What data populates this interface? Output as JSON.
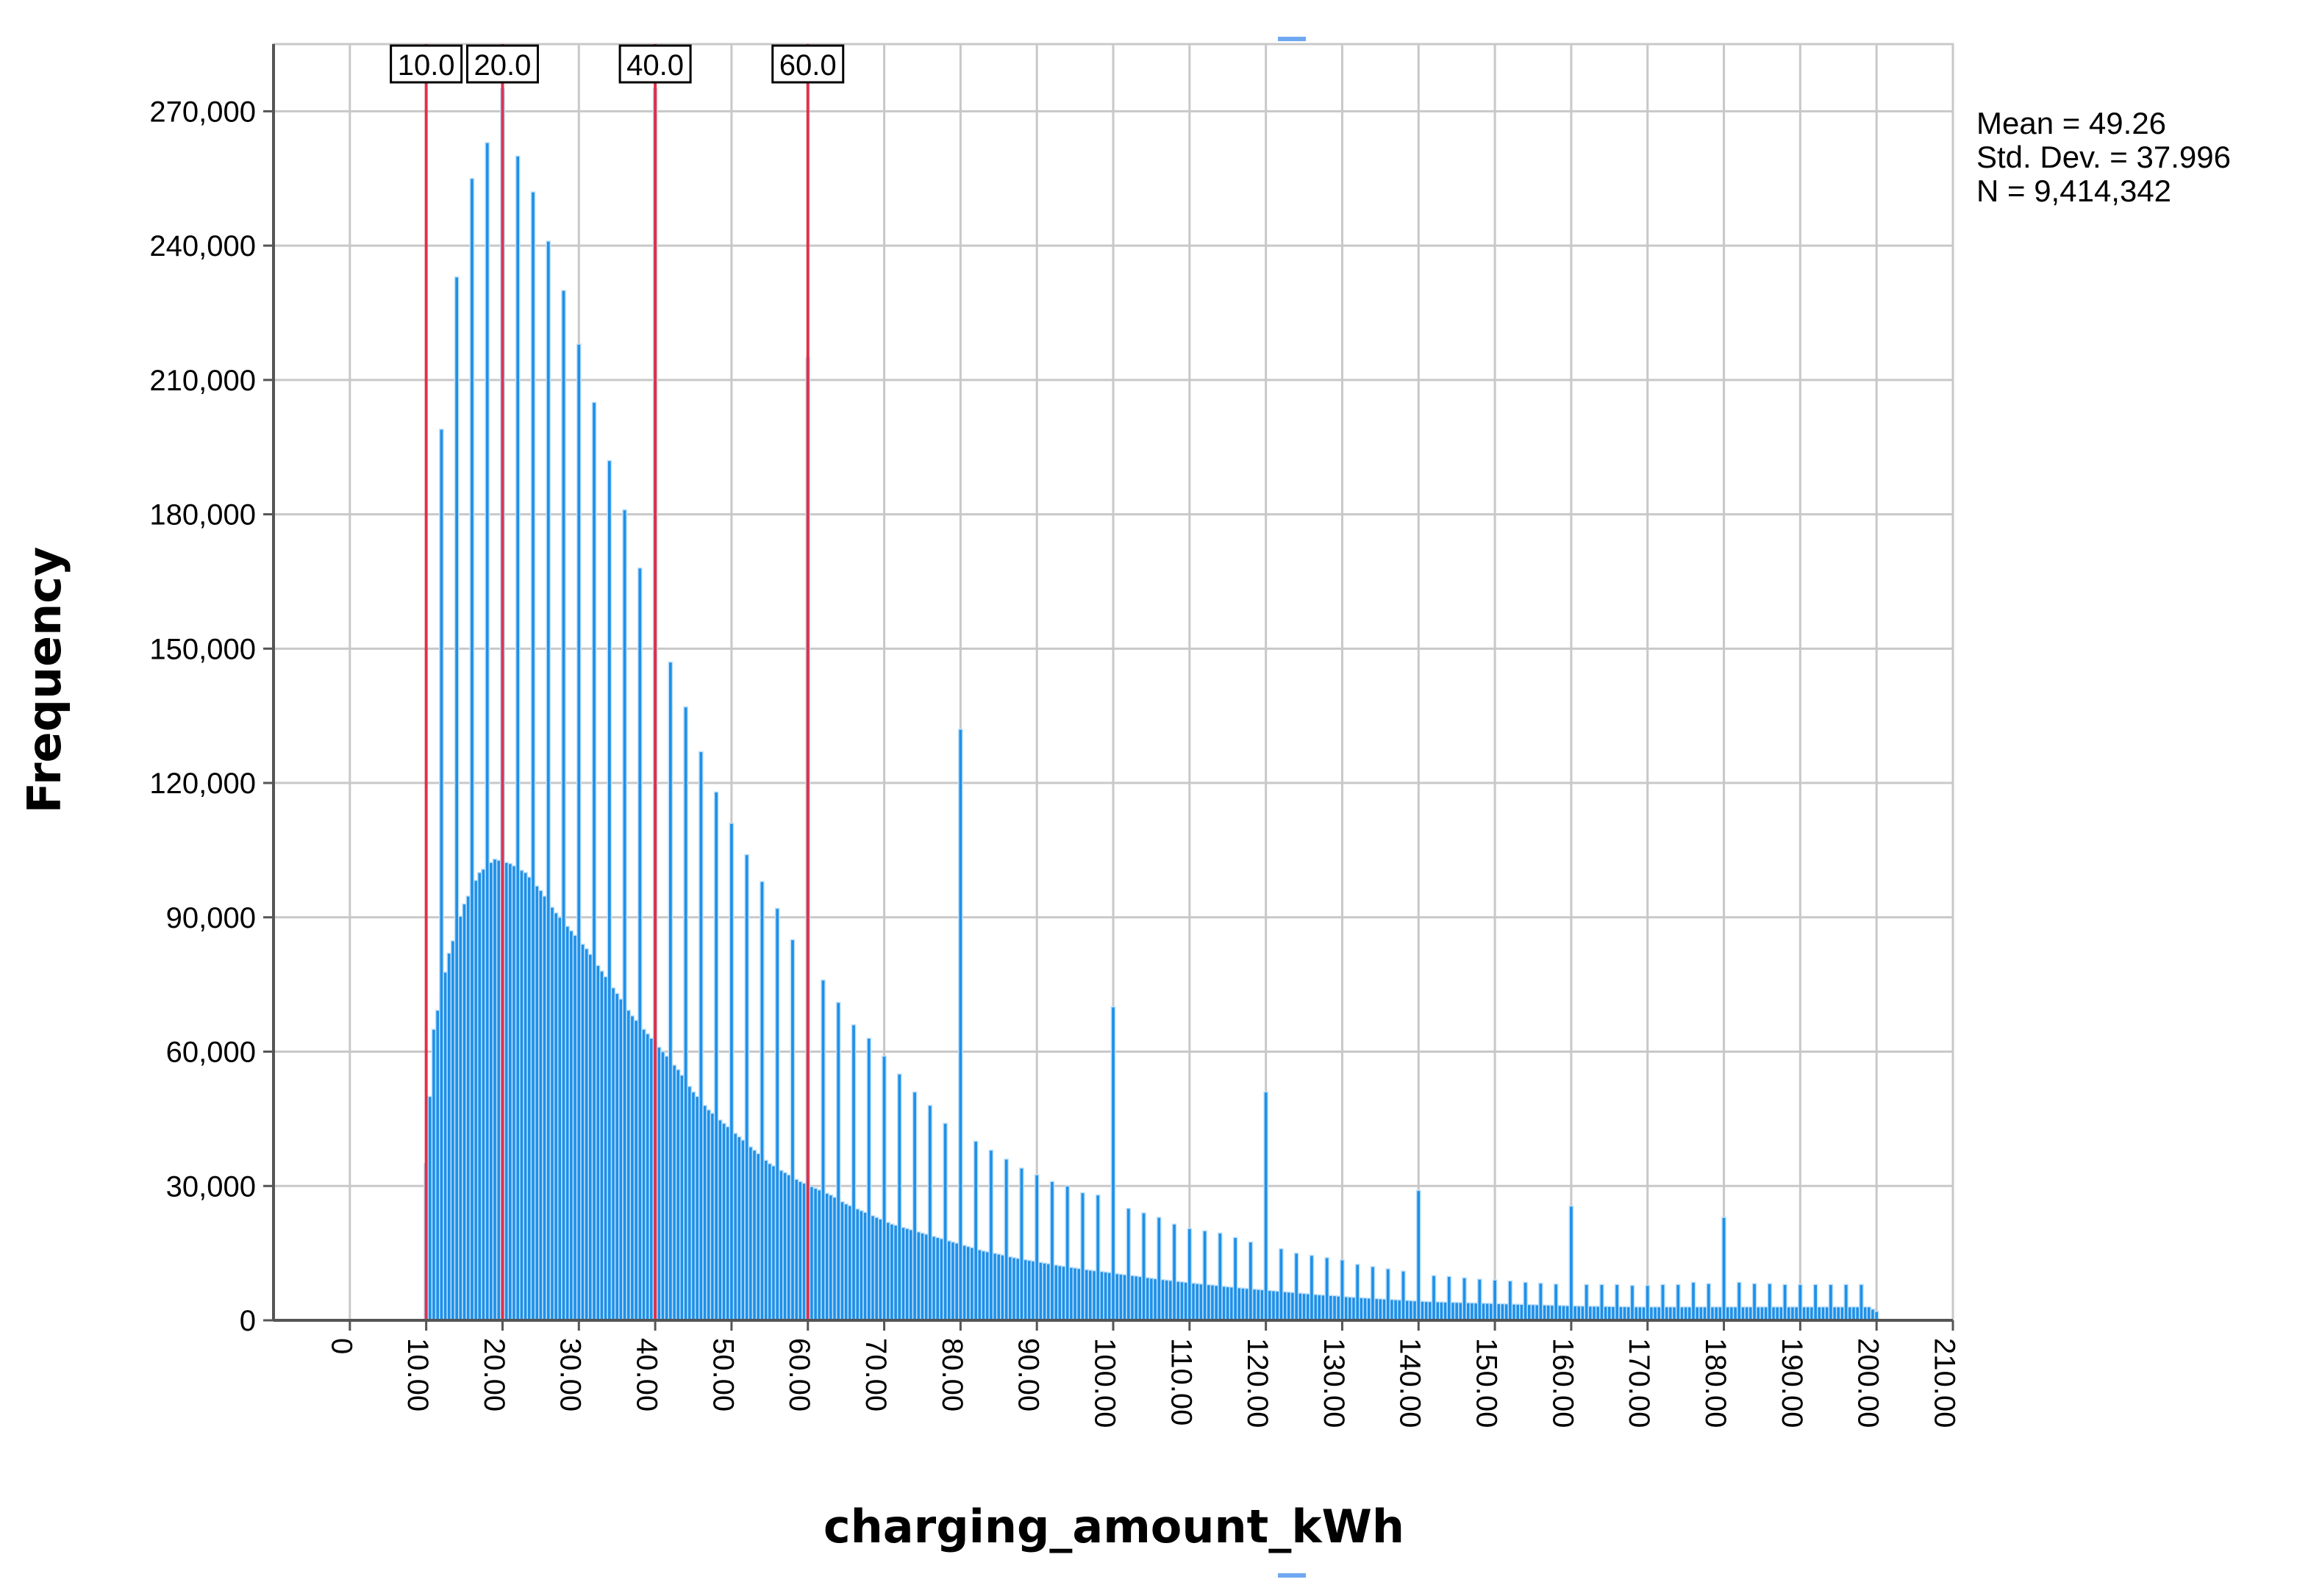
{
  "chart_data": {
    "type": "bar",
    "title": "",
    "xlabel": "charging_amount_kWh",
    "ylabel": "Frequency",
    "xlim": [
      -10,
      210
    ],
    "ylim": [
      0,
      285000
    ],
    "grid": true,
    "x_ticks": [
      {
        "value": 0,
        "label": "0"
      },
      {
        "value": 10,
        "label": "10.00"
      },
      {
        "value": 20,
        "label": "20.00"
      },
      {
        "value": 30,
        "label": "30.00"
      },
      {
        "value": 40,
        "label": "40.00"
      },
      {
        "value": 50,
        "label": "50.00"
      },
      {
        "value": 60,
        "label": "60.00"
      },
      {
        "value": 70,
        "label": "70.00"
      },
      {
        "value": 80,
        "label": "80.00"
      },
      {
        "value": 90,
        "label": "90.00"
      },
      {
        "value": 100,
        "label": "100.00"
      },
      {
        "value": 110,
        "label": "110.00"
      },
      {
        "value": 120,
        "label": "120.00"
      },
      {
        "value": 130,
        "label": "130.00"
      },
      {
        "value": 140,
        "label": "140.00"
      },
      {
        "value": 150,
        "label": "150.00"
      },
      {
        "value": 160,
        "label": "160.00"
      },
      {
        "value": 170,
        "label": "170.00"
      },
      {
        "value": 180,
        "label": "180.00"
      },
      {
        "value": 190,
        "label": "190.00"
      },
      {
        "value": 200,
        "label": "200.00"
      },
      {
        "value": 210,
        "label": "210.00"
      }
    ],
    "y_ticks": [
      {
        "value": 0,
        "label": "0"
      },
      {
        "value": 30000,
        "label": "30,000"
      },
      {
        "value": 60000,
        "label": "60,000"
      },
      {
        "value": 90000,
        "label": "90,000"
      },
      {
        "value": 120000,
        "label": "120,000"
      },
      {
        "value": 150000,
        "label": "150,000"
      },
      {
        "value": 180000,
        "label": "180,000"
      },
      {
        "value": 210000,
        "label": "210,000"
      },
      {
        "value": 240000,
        "label": "240,000"
      },
      {
        "value": 270000,
        "label": "270,000"
      }
    ],
    "bin_width": 0.5,
    "spikes": [
      {
        "x": 10,
        "value": 35000
      },
      {
        "x": 12,
        "value": 199000
      },
      {
        "x": 14,
        "value": 233000
      },
      {
        "x": 16,
        "value": 255000
      },
      {
        "x": 18,
        "value": 263000
      },
      {
        "x": 20,
        "value": 275000
      },
      {
        "x": 22,
        "value": 260000
      },
      {
        "x": 24,
        "value": 252000
      },
      {
        "x": 26,
        "value": 241000
      },
      {
        "x": 28,
        "value": 230000
      },
      {
        "x": 30,
        "value": 218000
      },
      {
        "x": 32,
        "value": 205000
      },
      {
        "x": 34,
        "value": 192000
      },
      {
        "x": 36,
        "value": 181000
      },
      {
        "x": 38,
        "value": 168000
      },
      {
        "x": 40,
        "value": 275000
      },
      {
        "x": 42,
        "value": 147000
      },
      {
        "x": 44,
        "value": 137000
      },
      {
        "x": 46,
        "value": 127000
      },
      {
        "x": 48,
        "value": 118000
      },
      {
        "x": 50,
        "value": 111000
      },
      {
        "x": 52,
        "value": 104000
      },
      {
        "x": 54,
        "value": 98000
      },
      {
        "x": 56,
        "value": 92000
      },
      {
        "x": 58,
        "value": 85000
      },
      {
        "x": 60,
        "value": 215000
      },
      {
        "x": 62,
        "value": 76000
      },
      {
        "x": 64,
        "value": 71000
      },
      {
        "x": 66,
        "value": 66000
      },
      {
        "x": 68,
        "value": 63000
      },
      {
        "x": 70,
        "value": 59000
      },
      {
        "x": 72,
        "value": 55000
      },
      {
        "x": 74,
        "value": 51000
      },
      {
        "x": 76,
        "value": 48000
      },
      {
        "x": 78,
        "value": 44000
      },
      {
        "x": 80,
        "value": 132000
      },
      {
        "x": 82,
        "value": 40000
      },
      {
        "x": 84,
        "value": 38000
      },
      {
        "x": 86,
        "value": 36000
      },
      {
        "x": 88,
        "value": 34000
      },
      {
        "x": 90,
        "value": 32500
      },
      {
        "x": 92,
        "value": 31000
      },
      {
        "x": 94,
        "value": 30000
      },
      {
        "x": 96,
        "value": 28500
      },
      {
        "x": 98,
        "value": 28000
      },
      {
        "x": 100,
        "value": 70000
      },
      {
        "x": 102,
        "value": 25000
      },
      {
        "x": 104,
        "value": 24000
      },
      {
        "x": 106,
        "value": 23000
      },
      {
        "x": 108,
        "value": 21500
      },
      {
        "x": 110,
        "value": 20500
      },
      {
        "x": 112,
        "value": 20000
      },
      {
        "x": 114,
        "value": 19500
      },
      {
        "x": 116,
        "value": 18500
      },
      {
        "x": 118,
        "value": 17500
      },
      {
        "x": 120,
        "value": 51000
      },
      {
        "x": 122,
        "value": 16000
      },
      {
        "x": 124,
        "value": 15000
      },
      {
        "x": 126,
        "value": 14500
      },
      {
        "x": 128,
        "value": 14000
      },
      {
        "x": 130,
        "value": 13500
      },
      {
        "x": 132,
        "value": 12500
      },
      {
        "x": 134,
        "value": 12000
      },
      {
        "x": 136,
        "value": 11500
      },
      {
        "x": 138,
        "value": 11000
      },
      {
        "x": 140,
        "value": 29000
      },
      {
        "x": 142,
        "value": 10000
      },
      {
        "x": 144,
        "value": 9800
      },
      {
        "x": 146,
        "value": 9500
      },
      {
        "x": 148,
        "value": 9200
      },
      {
        "x": 150,
        "value": 9000
      },
      {
        "x": 152,
        "value": 8800
      },
      {
        "x": 154,
        "value": 8500
      },
      {
        "x": 156,
        "value": 8300
      },
      {
        "x": 158,
        "value": 8100
      },
      {
        "x": 160,
        "value": 25500
      },
      {
        "x": 162,
        "value": 8000
      },
      {
        "x": 164,
        "value": 8000
      },
      {
        "x": 166,
        "value": 8000
      },
      {
        "x": 168,
        "value": 7800
      },
      {
        "x": 170,
        "value": 7800
      },
      {
        "x": 172,
        "value": 8000
      },
      {
        "x": 174,
        "value": 8000
      },
      {
        "x": 176,
        "value": 8500
      },
      {
        "x": 178,
        "value": 8200
      },
      {
        "x": 180,
        "value": 23000
      },
      {
        "x": 182,
        "value": 8500
      },
      {
        "x": 184,
        "value": 8200
      },
      {
        "x": 186,
        "value": 8200
      },
      {
        "x": 188,
        "value": 8000
      },
      {
        "x": 190,
        "value": 8000
      },
      {
        "x": 192,
        "value": 8000
      },
      {
        "x": 194,
        "value": 8000
      },
      {
        "x": 196,
        "value": 8000
      },
      {
        "x": 198,
        "value": 8000
      },
      {
        "x": 200,
        "value": 2000
      }
    ],
    "baseline": [
      {
        "x": 10,
        "value": 35000
      },
      {
        "x": 11,
        "value": 65000
      },
      {
        "x": 13,
        "value": 82000
      },
      {
        "x": 15,
        "value": 93000
      },
      {
        "x": 17,
        "value": 100000
      },
      {
        "x": 19,
        "value": 103000
      },
      {
        "x": 21,
        "value": 102000
      },
      {
        "x": 23,
        "value": 100000
      },
      {
        "x": 25,
        "value": 96000
      },
      {
        "x": 27,
        "value": 91000
      },
      {
        "x": 29,
        "value": 87000
      },
      {
        "x": 31,
        "value": 83000
      },
      {
        "x": 33,
        "value": 78000
      },
      {
        "x": 35,
        "value": 73000
      },
      {
        "x": 37,
        "value": 68000
      },
      {
        "x": 39,
        "value": 64000
      },
      {
        "x": 41,
        "value": 60000
      },
      {
        "x": 43,
        "value": 56000
      },
      {
        "x": 45,
        "value": 51000
      },
      {
        "x": 47,
        "value": 47000
      },
      {
        "x": 49,
        "value": 44000
      },
      {
        "x": 51,
        "value": 41000
      },
      {
        "x": 53,
        "value": 38000
      },
      {
        "x": 55,
        "value": 35000
      },
      {
        "x": 57,
        "value": 33000
      },
      {
        "x": 59,
        "value": 31000
      },
      {
        "x": 61,
        "value": 29500
      },
      {
        "x": 63,
        "value": 28000
      },
      {
        "x": 65,
        "value": 26000
      },
      {
        "x": 67,
        "value": 24500
      },
      {
        "x": 69,
        "value": 23000
      },
      {
        "x": 71,
        "value": 21500
      },
      {
        "x": 73,
        "value": 20500
      },
      {
        "x": 75,
        "value": 19500
      },
      {
        "x": 77,
        "value": 18500
      },
      {
        "x": 79,
        "value": 17500
      },
      {
        "x": 81,
        "value": 16500
      },
      {
        "x": 83,
        "value": 15500
      },
      {
        "x": 85,
        "value": 14800
      },
      {
        "x": 87,
        "value": 14000
      },
      {
        "x": 89,
        "value": 13400
      },
      {
        "x": 91,
        "value": 12800
      },
      {
        "x": 93,
        "value": 12200
      },
      {
        "x": 95,
        "value": 11700
      },
      {
        "x": 97,
        "value": 11200
      },
      {
        "x": 99,
        "value": 10800
      },
      {
        "x": 101,
        "value": 10300
      },
      {
        "x": 103,
        "value": 9900
      },
      {
        "x": 105,
        "value": 9400
      },
      {
        "x": 107,
        "value": 9000
      },
      {
        "x": 109,
        "value": 8600
      },
      {
        "x": 111,
        "value": 8200
      },
      {
        "x": 113,
        "value": 7900
      },
      {
        "x": 115,
        "value": 7500
      },
      {
        "x": 117,
        "value": 7200
      },
      {
        "x": 119,
        "value": 6900
      },
      {
        "x": 121,
        "value": 6600
      },
      {
        "x": 123,
        "value": 6300
      },
      {
        "x": 125,
        "value": 6000
      },
      {
        "x": 127,
        "value": 5700
      },
      {
        "x": 129,
        "value": 5500
      },
      {
        "x": 131,
        "value": 5200
      },
      {
        "x": 133,
        "value": 5000
      },
      {
        "x": 135,
        "value": 4800
      },
      {
        "x": 137,
        "value": 4600
      },
      {
        "x": 139,
        "value": 4400
      },
      {
        "x": 141,
        "value": 4200
      },
      {
        "x": 143,
        "value": 4100
      },
      {
        "x": 145,
        "value": 4000
      },
      {
        "x": 147,
        "value": 3900
      },
      {
        "x": 149,
        "value": 3800
      },
      {
        "x": 151,
        "value": 3700
      },
      {
        "x": 153,
        "value": 3600
      },
      {
        "x": 155,
        "value": 3500
      },
      {
        "x": 157,
        "value": 3400
      },
      {
        "x": 159,
        "value": 3300
      },
      {
        "x": 161,
        "value": 3200
      },
      {
        "x": 163,
        "value": 3150
      },
      {
        "x": 165,
        "value": 3100
      },
      {
        "x": 167,
        "value": 3050
      },
      {
        "x": 169,
        "value": 3000
      },
      {
        "x": 171,
        "value": 3000
      },
      {
        "x": 173,
        "value": 3000
      },
      {
        "x": 175,
        "value": 3000
      },
      {
        "x": 177,
        "value": 3000
      },
      {
        "x": 179,
        "value": 3000
      },
      {
        "x": 181,
        "value": 3000
      },
      {
        "x": 183,
        "value": 3000
      },
      {
        "x": 185,
        "value": 3000
      },
      {
        "x": 187,
        "value": 3000
      },
      {
        "x": 189,
        "value": 3000
      },
      {
        "x": 191,
        "value": 3000
      },
      {
        "x": 193,
        "value": 3000
      },
      {
        "x": 195,
        "value": 3000
      },
      {
        "x": 197,
        "value": 3000
      },
      {
        "x": 199,
        "value": 3000
      },
      {
        "x": 200,
        "value": 2000
      }
    ],
    "reference_lines": [
      {
        "x": 10,
        "label": "10.0"
      },
      {
        "x": 20,
        "label": "20.0"
      },
      {
        "x": 40,
        "label": "40.0"
      },
      {
        "x": 60,
        "label": "60.0"
      }
    ],
    "stats": {
      "mean": "Mean = 49.26",
      "std": "Std. Dev. = 37.996",
      "n": "N = 9,414,342"
    },
    "colors": {
      "bar": "#1e90e8",
      "bar_edge": "#bfe0fa",
      "reference_line": "#e0304a",
      "grid": "#c8c8c8",
      "axis": "#555555"
    }
  }
}
